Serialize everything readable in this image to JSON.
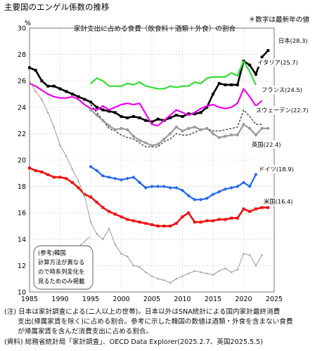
{
  "title": "主要国のエンゲル係数の推移",
  "subtitle": "家計支出に占める食費（飲食料＋酒類＋外食）の割合",
  "note_top": "＊数字は最新年の値",
  "footnotes": [
    "(注) 日本は家計調査による(二人以上の世帯)。日本以外はSNA統計による国内家計最終消費",
    "　　支出(帰属家賃を除く)に占める割合。参考に示した韓国の数値は酒類・外食を含まない食費",
    "　　が帰属家賃を含んだ消費支出に占める割合。",
    "(資料) 総務省統計局「家計調査」、OECD Data Explorer(2025.2.7、英国2025.5.5)"
  ],
  "korea_note": [
    "(参考)韓国",
    "計算方法が異なる",
    "ので時系列変化を",
    "見るためのみ掲載"
  ],
  "chart_data": {
    "type": "line",
    "title": "家計支出に占める食費（飲食料＋酒類＋外食）の割合",
    "ylabel": "%",
    "xlim": [
      1985,
      2025
    ],
    "ylim": [
      10,
      30
    ],
    "x_ticks": [
      "1985",
      "1990",
      "1995",
      "2000",
      "2005",
      "2010",
      "2015",
      "2020",
      "2025"
    ],
    "y_ticks": [
      "10",
      "12",
      "14",
      "16",
      "18",
      "20",
      "22",
      "24",
      "26",
      "28",
      "30"
    ],
    "grid": true,
    "series": [
      {
        "name": "日本(28.3)",
        "label": "日本(28.3)",
        "color": "#000000",
        "marker": "square",
        "width": 2.6,
        "dash": "",
        "x": [
          1985,
          1986,
          1987,
          1988,
          1989,
          1990,
          1991,
          1992,
          1993,
          1994,
          1995,
          1996,
          1997,
          1998,
          1999,
          2000,
          2001,
          2002,
          2003,
          2004,
          2005,
          2006,
          2007,
          2008,
          2009,
          2010,
          2011,
          2012,
          2013,
          2014,
          2015,
          2016,
          2017,
          2018,
          2019,
          2020,
          2021,
          2022,
          2023,
          2024
        ],
        "y": [
          27.0,
          26.8,
          26.0,
          25.6,
          25.6,
          25.4,
          25.2,
          25.0,
          24.8,
          24.6,
          24.4,
          24.0,
          23.8,
          23.7,
          23.6,
          23.3,
          23.2,
          23.3,
          23.2,
          23.0,
          22.9,
          23.1,
          23.0,
          23.2,
          23.4,
          23.3,
          23.5,
          23.5,
          23.6,
          24.0,
          25.0,
          25.8,
          25.7,
          25.7,
          25.7,
          27.5,
          27.2,
          26.5,
          27.8,
          28.3
        ]
      },
      {
        "name": "イタリア(25.7)",
        "label": "イタリア(25.7)",
        "color": "#33dd33",
        "marker": "none",
        "width": 2.2,
        "dash": "",
        "x": [
          1995,
          1996,
          1997,
          1998,
          1999,
          2000,
          2001,
          2002,
          2003,
          2004,
          2005,
          2006,
          2007,
          2008,
          2009,
          2010,
          2011,
          2012,
          2013,
          2014,
          2015,
          2016,
          2017,
          2018,
          2019,
          2020,
          2021,
          2022
        ],
        "y": [
          25.8,
          26.2,
          26.0,
          25.6,
          25.6,
          25.6,
          25.8,
          25.7,
          25.9,
          25.6,
          25.5,
          25.4,
          25.4,
          25.6,
          25.5,
          25.6,
          25.6,
          25.9,
          25.8,
          26.2,
          26.3,
          26.3,
          26.3,
          26.6,
          26.4,
          27.5,
          26.7,
          25.7
        ]
      },
      {
        "name": "フランス(24.5)",
        "label": "フランス(24.5)",
        "color": "#ee00ee",
        "marker": "none",
        "width": 2.2,
        "dash": "",
        "x": [
          1985,
          1986,
          1987,
          1988,
          1989,
          1990,
          1991,
          1992,
          1993,
          1994,
          1995,
          1996,
          1997,
          1998,
          1999,
          2000,
          2001,
          2002,
          2003,
          2004,
          2005,
          2006,
          2007,
          2008,
          2009,
          2010,
          2011,
          2012,
          2013,
          2014,
          2015,
          2016,
          2017,
          2018,
          2019,
          2020,
          2021,
          2022,
          2023
        ],
        "y": [
          25.8,
          25.6,
          25.3,
          25.0,
          24.8,
          24.7,
          24.7,
          24.8,
          24.6,
          24.2,
          23.9,
          23.8,
          24.1,
          23.8,
          24.0,
          24.2,
          24.3,
          24.2,
          24.3,
          23.5,
          22.7,
          22.6,
          23.0,
          23.4,
          23.8,
          23.6,
          23.4,
          23.6,
          23.9,
          24.1,
          24.2,
          24.0,
          23.9,
          24.0,
          24.3,
          25.4,
          24.8,
          24.1,
          24.5
        ]
      },
      {
        "name": "スウェーデン(22.7)",
        "label": "スウェーデン(22.7)",
        "color": "#111111",
        "marker": "none",
        "width": 1.1,
        "dash": "3,2",
        "x": [
          1995,
          1996,
          1997,
          1998,
          1999,
          2000,
          2001,
          2002,
          2003,
          2004,
          2005,
          2006,
          2007,
          2008,
          2009,
          2010,
          2011,
          2012,
          2013,
          2014,
          2015,
          2016,
          2017,
          2018,
          2019,
          2020,
          2021,
          2022,
          2023
        ],
        "y": [
          24.2,
          23.6,
          23.0,
          22.4,
          22.2,
          21.9,
          21.7,
          21.6,
          21.3,
          21.0,
          21.0,
          21.0,
          21.4,
          21.6,
          22.0,
          21.9,
          21.9,
          22.1,
          22.3,
          22.4,
          22.2,
          22.2,
          22.3,
          22.4,
          22.5,
          23.8,
          23.3,
          22.7,
          22.7
        ]
      },
      {
        "name": "英国(22.4)",
        "label": "英国(22.4)",
        "color": "#999999",
        "marker": "circle",
        "width": 2.2,
        "dash": "",
        "x": [
          1995,
          1996,
          1997,
          1998,
          1999,
          2000,
          2001,
          2002,
          2003,
          2004,
          2005,
          2006,
          2007,
          2008,
          2009,
          2010,
          2011,
          2012,
          2013,
          2014,
          2015,
          2016,
          2017,
          2018,
          2019,
          2020,
          2021,
          2022,
          2023,
          2024
        ],
        "y": [
          23.8,
          23.4,
          23.0,
          22.6,
          22.3,
          22.4,
          22.3,
          21.8,
          21.5,
          21.3,
          21.1,
          21.2,
          21.6,
          22.0,
          22.5,
          22.2,
          22.4,
          22.5,
          22.3,
          22.4,
          22.0,
          21.7,
          21.8,
          21.9,
          21.9,
          22.7,
          22.4,
          21.9,
          22.4,
          22.4
        ]
      },
      {
        "name": "ドイツ(18.9)",
        "label": "ドイツ(18.9)",
        "color": "#2266ee",
        "marker": "diamond",
        "width": 2.2,
        "dash": "",
        "x": [
          1995,
          1996,
          1997,
          1998,
          1999,
          2000,
          2001,
          2002,
          2003,
          2004,
          2005,
          2006,
          2007,
          2008,
          2009,
          2010,
          2011,
          2012,
          2013,
          2014,
          2015,
          2016,
          2017,
          2018,
          2019,
          2020,
          2021,
          2022
        ],
        "y": [
          19.5,
          19.2,
          18.8,
          18.7,
          18.6,
          18.5,
          18.6,
          18.7,
          18.3,
          17.9,
          18.0,
          18.0,
          18.0,
          17.9,
          17.9,
          17.7,
          17.3,
          17.0,
          17.0,
          17.1,
          17.4,
          17.6,
          17.8,
          17.9,
          18.0,
          18.3,
          18.0,
          18.9
        ]
      },
      {
        "name": "米国(16.4)",
        "label": "米国(16.4)",
        "color": "#ee1111",
        "marker": "square",
        "width": 2.6,
        "dash": "",
        "x": [
          1985,
          1986,
          1987,
          1988,
          1989,
          1990,
          1991,
          1992,
          1993,
          1994,
          1995,
          1996,
          1997,
          1998,
          1999,
          2000,
          2001,
          2002,
          2003,
          2004,
          2005,
          2006,
          2007,
          2008,
          2009,
          2010,
          2011,
          2012,
          2013,
          2014,
          2015,
          2016,
          2017,
          2018,
          2019,
          2020,
          2021,
          2022,
          2023,
          2024
        ],
        "y": [
          19.4,
          19.2,
          19.1,
          18.9,
          18.7,
          18.7,
          18.6,
          18.3,
          17.9,
          17.4,
          17.2,
          16.8,
          16.4,
          16.1,
          15.9,
          15.7,
          15.5,
          15.4,
          15.3,
          15.2,
          15.1,
          15.0,
          15.0,
          15.0,
          15.2,
          15.7,
          16.0,
          15.3,
          15.3,
          15.4,
          15.4,
          15.5,
          15.5,
          15.6,
          15.6,
          16.3,
          16.1,
          16.3,
          16.4,
          16.4
        ]
      },
      {
        "name": "韓国",
        "label": "",
        "color": "#999999",
        "marker": "cross",
        "width": 1.0,
        "dash": "",
        "x": [
          1985,
          1986,
          1987,
          1988,
          1989,
          1990,
          1991,
          1992,
          1993,
          1994,
          1995,
          1996,
          1997,
          1998,
          1999,
          2000,
          2001,
          2002,
          2003,
          2004,
          2005,
          2006,
          2007,
          2008,
          2009,
          2010,
          2011,
          2012,
          2013,
          2014,
          2015,
          2016,
          2017,
          2018,
          2019,
          2020,
          2021,
          2022,
          2023
        ],
        "y": [
          26.0,
          25.2,
          24.6,
          23.6,
          22.5,
          21.1,
          20.3,
          19.3,
          18.4,
          17.3,
          15.3,
          14.4,
          14.0,
          14.8,
          13.6,
          12.9,
          12.7,
          12.0,
          11.9,
          11.5,
          11.2,
          11.0,
          10.9,
          10.7,
          11.0,
          11.2,
          11.4,
          11.6,
          11.5,
          11.4,
          11.3,
          11.6,
          11.8,
          11.5,
          11.7,
          12.9,
          12.8,
          12.0,
          12.8
        ]
      }
    ]
  }
}
